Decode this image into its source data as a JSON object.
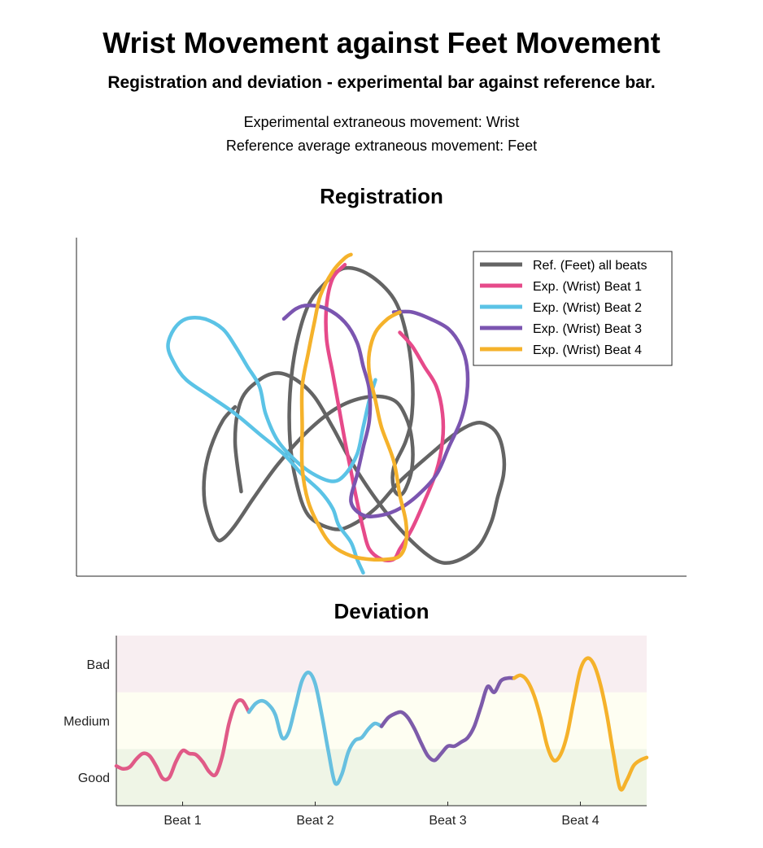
{
  "header": {
    "title": "Wrist Movement against Feet Movement",
    "subtitle": "Registration and deviation - experimental bar against reference bar.",
    "experimental_line": "Experimental extraneous movement: Wrist",
    "reference_line": "Reference average extraneous movement: Feet"
  },
  "chart_data": [
    {
      "type": "line",
      "title": "Registration",
      "xlabel": "",
      "ylabel": "",
      "grid": false,
      "legend_position": "top-right",
      "series": [
        {
          "name": "Ref. (Feet) all beats",
          "color": "#646464",
          "x": [
            0.27,
            0.26,
            0.27,
            0.3,
            0.33,
            0.36,
            0.39,
            0.42,
            0.45,
            0.49,
            0.53,
            0.57,
            0.6,
            0.63,
            0.66,
            0.68,
            0.69,
            0.7,
            0.7,
            0.69,
            0.67,
            0.65,
            0.62,
            0.58,
            0.53,
            0.49,
            0.45,
            0.42,
            0.38,
            0.36,
            0.35,
            0.35,
            0.36,
            0.38,
            0.41,
            0.44,
            0.48,
            0.52,
            0.54,
            0.55,
            0.55,
            0.54,
            0.52,
            0.52,
            0.53,
            0.54,
            0.55,
            0.55,
            0.54,
            0.52,
            0.48,
            0.43,
            0.38,
            0.33,
            0.29,
            0.26,
            0.24,
            0.23,
            0.22,
            0.21,
            0.21,
            0.22,
            0.24,
            0.26
          ],
          "y": [
            0.25,
            0.4,
            0.52,
            0.58,
            0.6,
            0.58,
            0.53,
            0.44,
            0.34,
            0.23,
            0.14,
            0.07,
            0.04,
            0.05,
            0.09,
            0.16,
            0.23,
            0.3,
            0.36,
            0.42,
            0.45,
            0.45,
            0.42,
            0.36,
            0.28,
            0.2,
            0.15,
            0.14,
            0.18,
            0.28,
            0.4,
            0.54,
            0.68,
            0.8,
            0.87,
            0.91,
            0.89,
            0.82,
            0.72,
            0.6,
            0.48,
            0.4,
            0.32,
            0.26,
            0.24,
            0.26,
            0.32,
            0.4,
            0.47,
            0.52,
            0.53,
            0.5,
            0.43,
            0.33,
            0.23,
            0.15,
            0.11,
            0.11,
            0.15,
            0.22,
            0.3,
            0.38,
            0.46,
            0.5
          ]
        },
        {
          "name": "Exp. (Wrist) Beat 1",
          "color": "#E64A8A",
          "x": [
            0.44,
            0.42,
            0.41,
            0.41,
            0.42,
            0.43,
            0.44,
            0.45,
            0.46,
            0.47,
            0.48,
            0.5,
            0.52,
            0.53,
            0.55,
            0.57,
            0.59,
            0.6,
            0.6,
            0.59,
            0.57,
            0.55,
            0.53
          ],
          "y": [
            0.92,
            0.88,
            0.8,
            0.7,
            0.6,
            0.5,
            0.4,
            0.31,
            0.22,
            0.14,
            0.08,
            0.05,
            0.05,
            0.08,
            0.14,
            0.22,
            0.31,
            0.4,
            0.48,
            0.56,
            0.62,
            0.68,
            0.72
          ]
        },
        {
          "name": "Exp. (Wrist) Beat 2",
          "color": "#5BC3E6",
          "x": [
            0.47,
            0.46,
            0.45,
            0.43,
            0.42,
            0.4,
            0.37,
            0.34,
            0.3,
            0.26,
            0.22,
            0.18,
            0.16,
            0.15,
            0.16,
            0.18,
            0.21,
            0.24,
            0.26,
            0.28,
            0.3,
            0.31,
            0.33,
            0.36,
            0.39,
            0.42,
            0.44,
            0.46,
            0.47,
            0.48,
            0.49
          ],
          "y": [
            0.01,
            0.05,
            0.1,
            0.15,
            0.2,
            0.25,
            0.3,
            0.36,
            0.42,
            0.48,
            0.53,
            0.58,
            0.63,
            0.68,
            0.73,
            0.76,
            0.76,
            0.73,
            0.68,
            0.62,
            0.56,
            0.48,
            0.4,
            0.34,
            0.3,
            0.28,
            0.3,
            0.36,
            0.44,
            0.52,
            0.58
          ]
        },
        {
          "name": "Exp. (Wrist) Beat 3",
          "color": "#7B55B0",
          "x": [
            0.34,
            0.36,
            0.38,
            0.41,
            0.44,
            0.46,
            0.47,
            0.48,
            0.48,
            0.47,
            0.46,
            0.45,
            0.47,
            0.5,
            0.53,
            0.56,
            0.59,
            0.61,
            0.63,
            0.64,
            0.64,
            0.63,
            0.61,
            0.58,
            0.55,
            0.52
          ],
          "y": [
            0.76,
            0.79,
            0.8,
            0.79,
            0.75,
            0.69,
            0.62,
            0.55,
            0.46,
            0.38,
            0.3,
            0.22,
            0.18,
            0.18,
            0.2,
            0.24,
            0.3,
            0.38,
            0.46,
            0.54,
            0.62,
            0.68,
            0.73,
            0.76,
            0.78,
            0.78
          ]
        },
        {
          "name": "Exp. (Wrist) Beat 4",
          "color": "#F5B22B",
          "x": [
            0.53,
            0.51,
            0.49,
            0.48,
            0.48,
            0.49,
            0.5,
            0.52,
            0.53,
            0.54,
            0.54,
            0.53,
            0.51,
            0.48,
            0.45,
            0.42,
            0.4,
            0.38,
            0.37,
            0.37,
            0.37,
            0.38,
            0.39,
            0.4,
            0.42,
            0.44,
            0.45
          ],
          "y": [
            0.78,
            0.76,
            0.72,
            0.66,
            0.6,
            0.52,
            0.44,
            0.34,
            0.24,
            0.16,
            0.1,
            0.06,
            0.05,
            0.05,
            0.06,
            0.09,
            0.14,
            0.22,
            0.32,
            0.44,
            0.56,
            0.66,
            0.75,
            0.83,
            0.9,
            0.94,
            0.95
          ]
        }
      ]
    },
    {
      "type": "line",
      "title": "Deviation",
      "categories": [
        "Beat 1",
        "Beat 2",
        "Beat 3",
        "Beat 4"
      ],
      "x_ticks": [
        0.5,
        1.5,
        2.5,
        3.5
      ],
      "xlim": [
        0,
        4
      ],
      "y_ticks": [
        "Good",
        "Medium",
        "Bad"
      ],
      "y_tick_values": [
        0.5,
        1.5,
        2.5
      ],
      "ylim": [
        0,
        3
      ],
      "bands": [
        {
          "from": 0,
          "to": 1,
          "color": "#EFF5E6"
        },
        {
          "from": 1,
          "to": 2,
          "color": "#FEFEF2"
        },
        {
          "from": 2,
          "to": 3,
          "color": "#F8EEF1"
        }
      ],
      "segments": [
        {
          "beat": 1,
          "color": "#E05A87",
          "x": [
            0.0,
            0.05,
            0.1,
            0.15,
            0.2,
            0.25,
            0.3,
            0.35,
            0.4,
            0.45,
            0.5,
            0.55,
            0.6,
            0.65,
            0.7,
            0.75,
            0.8,
            0.85,
            0.9,
            0.95,
            1.0
          ],
          "y": [
            0.7,
            0.65,
            0.68,
            0.82,
            0.92,
            0.88,
            0.7,
            0.48,
            0.5,
            0.78,
            0.97,
            0.92,
            0.9,
            0.78,
            0.6,
            0.55,
            0.88,
            1.45,
            1.8,
            1.85,
            1.65
          ]
        },
        {
          "beat": 2,
          "color": "#67C0E0",
          "x": [
            1.0,
            1.05,
            1.1,
            1.15,
            1.2,
            1.25,
            1.3,
            1.35,
            1.4,
            1.45,
            1.5,
            1.55,
            1.6,
            1.65,
            1.7,
            1.75,
            1.8,
            1.85,
            1.9,
            1.95,
            2.0
          ],
          "y": [
            1.65,
            1.8,
            1.85,
            1.78,
            1.6,
            1.2,
            1.3,
            1.75,
            2.2,
            2.35,
            2.15,
            1.6,
            0.95,
            0.4,
            0.55,
            0.95,
            1.15,
            1.2,
            1.35,
            1.45,
            1.4
          ]
        },
        {
          "beat": 3,
          "color": "#7D5BAA",
          "x": [
            2.0,
            2.05,
            2.1,
            2.15,
            2.2,
            2.25,
            2.3,
            2.35,
            2.4,
            2.45,
            2.5,
            2.55,
            2.6,
            2.65,
            2.7,
            2.75,
            2.8,
            2.85,
            2.9,
            2.95,
            3.0
          ],
          "y": [
            1.4,
            1.55,
            1.62,
            1.65,
            1.55,
            1.35,
            1.1,
            0.88,
            0.8,
            0.92,
            1.05,
            1.05,
            1.12,
            1.2,
            1.4,
            1.75,
            2.1,
            2.0,
            2.2,
            2.25,
            2.25
          ]
        },
        {
          "beat": 4,
          "color": "#F5B22B",
          "x": [
            3.0,
            3.05,
            3.1,
            3.15,
            3.2,
            3.25,
            3.3,
            3.35,
            3.4,
            3.45,
            3.5,
            3.55,
            3.6,
            3.65,
            3.7,
            3.75,
            3.8,
            3.85,
            3.9,
            3.95,
            4.0
          ],
          "y": [
            2.25,
            2.3,
            2.2,
            1.95,
            1.55,
            1.05,
            0.8,
            0.9,
            1.25,
            1.85,
            2.4,
            2.6,
            2.5,
            2.15,
            1.6,
            0.9,
            0.3,
            0.45,
            0.7,
            0.8,
            0.85
          ]
        }
      ]
    }
  ]
}
